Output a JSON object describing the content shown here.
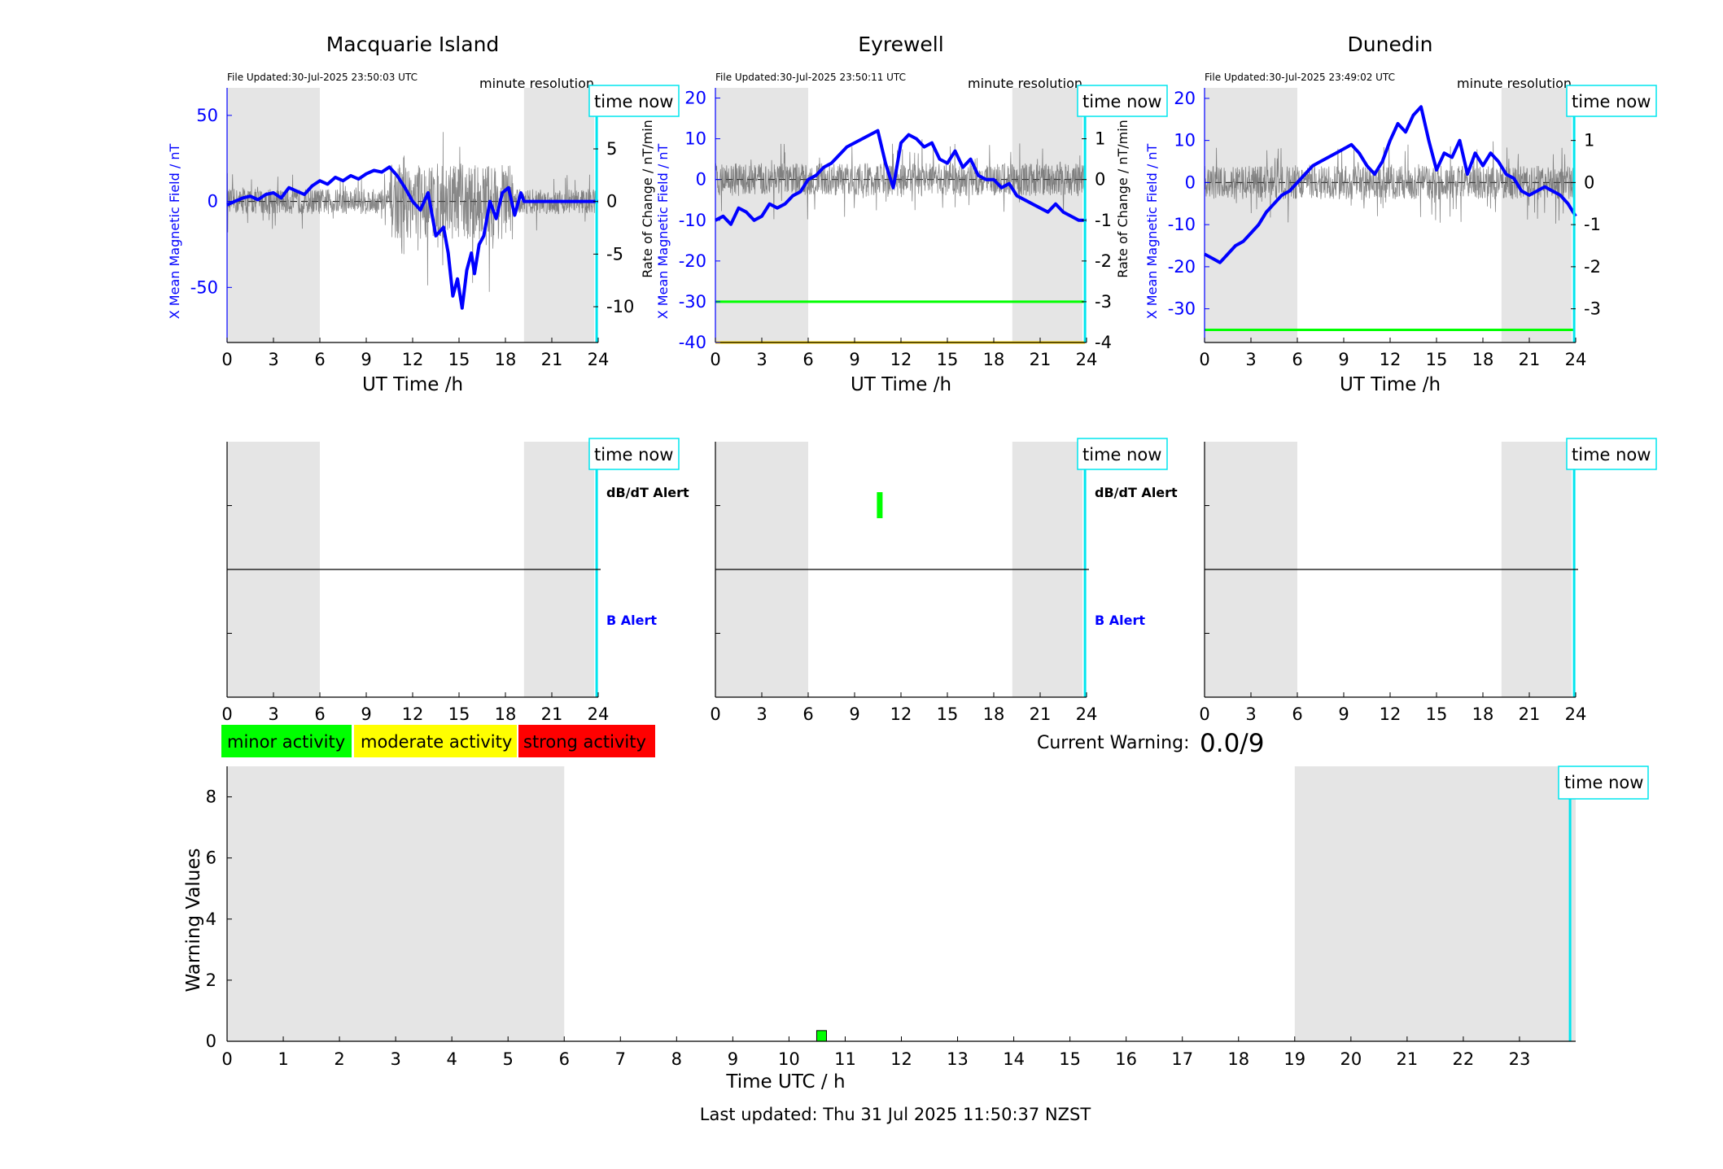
{
  "footer": {
    "last_updated": "Last updated: Thu 31 Jul 2025 11:50:37 NZST"
  },
  "warning": {
    "label": "Current Warning:",
    "value": "0.0/9"
  },
  "legend": {
    "items": [
      {
        "label": "minor activity",
        "color": "#00ff00"
      },
      {
        "label": "moderate activity",
        "color": "#ffff00"
      },
      {
        "label": "strong activity",
        "color": "#ff0000"
      }
    ]
  },
  "common": {
    "time_now_label": "time now",
    "minute_resolution": "minute resolution",
    "db_dt_alert": "dB/dT Alert",
    "b_alert": "B Alert",
    "xlabel": "UT Time /h",
    "time_now_h": 23.9,
    "night_bands": [
      [
        0,
        6
      ],
      [
        19.2,
        24
      ]
    ]
  },
  "colors": {
    "field": "#0000ff",
    "rate": "#555555",
    "time_now": "#00e5ee",
    "shade": "#e5e5e5",
    "minor": "#00ff00",
    "moderate": "#ffff00"
  },
  "chart_data": [
    {
      "type": "line",
      "title": "Macquarie Island",
      "file_updated": "File Updated:30-Jul-2025 23:50:03 UTC",
      "xlabel": "UT Time /h",
      "ylabel": "X Mean Magnetic Field / nT",
      "ylabel_right": "",
      "xlim": [
        0,
        24
      ],
      "ylim": [
        -82,
        66
      ],
      "yticks": [
        -50,
        0,
        50
      ],
      "ylim_right": [
        -13.4,
        10.8
      ],
      "yticks_right": [
        -10,
        -5,
        0,
        5,
        10
      ],
      "thresholds": [],
      "series": [
        {
          "values_x": [
            0,
            0.5,
            1,
            1.5,
            2,
            2.5,
            3,
            3.5,
            4,
            4.5,
            5,
            5.5,
            6,
            6.5,
            7,
            7.5,
            8,
            8.5,
            9,
            9.5,
            10,
            10.5,
            11,
            11.5,
            12,
            12.5,
            13,
            13.5,
            14,
            14.3,
            14.6,
            14.9,
            15.2,
            15.5,
            15.8,
            16,
            16.3,
            16.6,
            17,
            17.4,
            17.8,
            18.2,
            18.6,
            19,
            19.2,
            24
          ],
          "values_y": [
            -2,
            0,
            2,
            3,
            1,
            4,
            5,
            2,
            8,
            6,
            4,
            9,
            12,
            10,
            14,
            12,
            15,
            13,
            16,
            18,
            17,
            20,
            15,
            8,
            0,
            -5,
            5,
            -20,
            -15,
            -30,
            -55,
            -45,
            -62,
            -40,
            -30,
            -42,
            -25,
            -20,
            0,
            -10,
            5,
            8,
            -8,
            5,
            0,
            0
          ]
        }
      ]
    },
    {
      "type": "line",
      "title": "Eyrewell",
      "file_updated": "File Updated:30-Jul-2025 23:50:11 UTC",
      "xlabel": "UT Time /h",
      "ylabel": "X Mean Magnetic Field / nT",
      "ylabel_right": "Rate of Change / nT/min",
      "xlim": [
        0,
        24
      ],
      "ylim": [
        -40,
        22.5
      ],
      "yticks": [
        -40,
        -30,
        -20,
        -10,
        0,
        10,
        20
      ],
      "ylim_right": [
        -4,
        2.25
      ],
      "yticks_right": [
        -4,
        -3,
        -2,
        -1,
        0,
        1,
        2
      ],
      "thresholds": [
        {
          "y": -30,
          "color": "#00ff00"
        },
        {
          "y": -40,
          "color": "#ffd700"
        }
      ],
      "series": [
        {
          "values_x": [
            0,
            0.5,
            1,
            1.5,
            2,
            2.5,
            3,
            3.5,
            4,
            4.5,
            5,
            5.5,
            6,
            6.5,
            7,
            7.5,
            8,
            8.5,
            9,
            9.5,
            10,
            10.5,
            11,
            11.5,
            12,
            12.5,
            13,
            13.5,
            14,
            14.5,
            15,
            15.5,
            16,
            16.5,
            17,
            17.5,
            18,
            18.5,
            19,
            19.5,
            20,
            20.5,
            21,
            21.5,
            22,
            22.5,
            23,
            23.5,
            24
          ],
          "values_y": [
            -10,
            -9,
            -11,
            -7,
            -8,
            -10,
            -9,
            -6,
            -7,
            -6,
            -4,
            -3,
            0,
            1,
            3,
            4,
            6,
            8,
            9,
            10,
            11,
            12,
            4,
            -2,
            9,
            11,
            10,
            8,
            9,
            5,
            4,
            7,
            3,
            5,
            1,
            0,
            0,
            -2,
            -1,
            -4,
            -5,
            -6,
            -7,
            -8,
            -6,
            -8,
            -9,
            -10,
            -10
          ]
        }
      ]
    },
    {
      "type": "line",
      "title": "Dunedin",
      "file_updated": "File Updated:30-Jul-2025 23:49:02 UTC",
      "xlabel": "UT Time /h",
      "ylabel": "X Mean Magnetic Field / nT",
      "ylabel_right": "Rate of Change / nT/min",
      "xlim": [
        0,
        24
      ],
      "ylim": [
        -38,
        22.5
      ],
      "yticks": [
        -30,
        -20,
        -10,
        0,
        10,
        20
      ],
      "ylim_right": [
        -3.8,
        2.25
      ],
      "yticks_right": [
        -3,
        -2,
        -1,
        0,
        1,
        2
      ],
      "thresholds": [
        {
          "y": -35,
          "color": "#00ff00"
        }
      ],
      "series": [
        {
          "values_x": [
            0,
            0.5,
            1,
            1.5,
            2,
            2.5,
            3,
            3.5,
            4,
            4.5,
            5,
            5.5,
            6,
            6.5,
            7,
            7.5,
            8,
            8.5,
            9,
            9.5,
            10,
            10.5,
            11,
            11.5,
            12,
            12.5,
            13,
            13.5,
            14,
            14.5,
            15,
            15.5,
            16,
            16.5,
            17,
            17.5,
            18,
            18.5,
            19,
            19.5,
            20,
            20.5,
            21,
            21.5,
            22,
            22.5,
            23,
            23.5,
            24
          ],
          "values_y": [
            -17,
            -18,
            -19,
            -17,
            -15,
            -14,
            -12,
            -10,
            -7,
            -5,
            -3,
            -2,
            0,
            2,
            4,
            5,
            6,
            7,
            8,
            9,
            7,
            4,
            2,
            5,
            10,
            14,
            12,
            16,
            18,
            10,
            3,
            7,
            6,
            10,
            2,
            7,
            4,
            7,
            5,
            2,
            1,
            -2,
            -3,
            -2,
            -1,
            -2,
            -3,
            -5,
            -8
          ]
        }
      ]
    },
    {
      "type": "bar",
      "title": "",
      "xlabel": "Time UTC / h",
      "ylabel": "Warning Values",
      "xlim": [
        0,
        24
      ],
      "ylim": [
        0,
        9
      ],
      "xticks": [
        0,
        1,
        2,
        3,
        4,
        5,
        6,
        7,
        8,
        9,
        10,
        11,
        12,
        13,
        14,
        15,
        16,
        17,
        18,
        19,
        20,
        21,
        22,
        23
      ],
      "yticks": [
        0,
        2,
        4,
        6,
        8
      ],
      "night_bands": [
        [
          0,
          6
        ],
        [
          19,
          24
        ]
      ],
      "bars": [
        {
          "x": 10.58,
          "value": 0.35,
          "color": "#00ff00"
        }
      ]
    }
  ]
}
